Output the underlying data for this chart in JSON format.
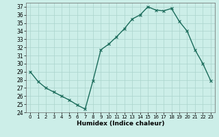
{
  "x": [
    0,
    1,
    2,
    3,
    4,
    5,
    6,
    7,
    8,
    9,
    10,
    11,
    12,
    13,
    14,
    15,
    16,
    17,
    18,
    19,
    20,
    21,
    22,
    23
  ],
  "y": [
    29,
    27.8,
    27,
    26.5,
    26,
    25.5,
    24.9,
    24.4,
    27.9,
    31.7,
    32.4,
    33.3,
    34.3,
    35.5,
    36.0,
    37.0,
    36.6,
    36.5,
    36.8,
    35.2,
    34.0,
    31.7,
    30.0,
    27.9
  ],
  "line_color": "#1a6b5a",
  "marker_color": "#1a6b5a",
  "bg_color": "#cceee8",
  "grid_color": "#aad4cc",
  "xlabel": "Humidex (Indice chaleur)",
  "ylim": [
    24,
    37.5
  ],
  "xlim": [
    -0.5,
    23.5
  ],
  "yticks": [
    24,
    25,
    26,
    27,
    28,
    29,
    30,
    31,
    32,
    33,
    34,
    35,
    36,
    37
  ],
  "xticks": [
    0,
    1,
    2,
    3,
    4,
    5,
    6,
    7,
    8,
    9,
    10,
    11,
    12,
    13,
    14,
    15,
    16,
    17,
    18,
    19,
    20,
    21,
    22,
    23
  ]
}
